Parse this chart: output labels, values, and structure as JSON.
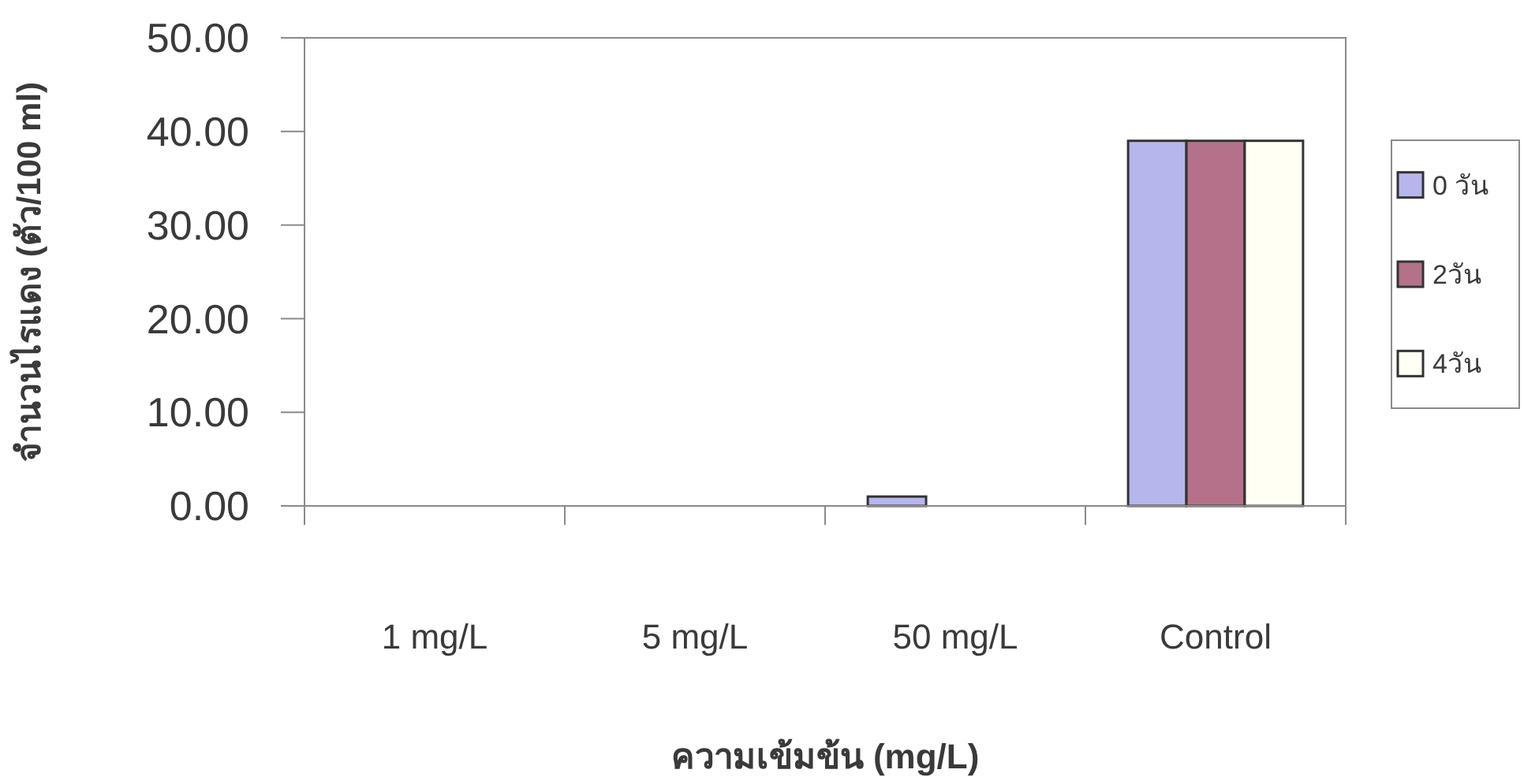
{
  "chart_data": {
    "type": "bar",
    "xlabel": "ความเข้มข้น (mg/L)",
    "ylabel": "จำนวนไรแดง (ตัว/100 ml)",
    "categories": [
      "1 mg/L",
      "5 mg/L",
      "50 mg/L",
      "Control"
    ],
    "series": [
      {
        "name": "0 วัน",
        "color": "#b7b6ec",
        "values": [
          0,
          0,
          1,
          39
        ]
      },
      {
        "name": "2วัน",
        "color": "#b3728a",
        "values": [
          0,
          0,
          0,
          39
        ]
      },
      {
        "name": "4วัน",
        "color": "#fffff4",
        "values": [
          0,
          0,
          0,
          39
        ]
      }
    ],
    "ylim": [
      0,
      50
    ],
    "yticks": [
      {
        "value": 0,
        "label": "0.00"
      },
      {
        "value": 10,
        "label": "10.00"
      },
      {
        "value": 20,
        "label": "20.00"
      },
      {
        "value": 30,
        "label": "30.00"
      },
      {
        "value": 40,
        "label": "40.00"
      },
      {
        "value": 50,
        "label": "50.00"
      }
    ],
    "legend": "right"
  }
}
